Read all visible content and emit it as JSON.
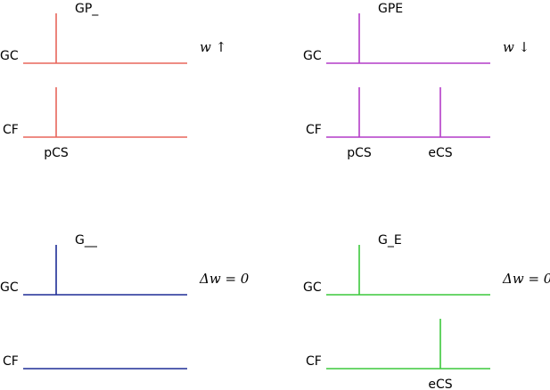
{
  "panels": [
    {
      "id": "gp",
      "title": "GP_",
      "color": "#e8665c",
      "gc_label": "GC",
      "cf_label": "CF",
      "gc_spikes": [
        "pre"
      ],
      "cf_spikes": [
        "pre"
      ],
      "tick_labels": [
        "pCS"
      ],
      "annotation": "w ↑"
    },
    {
      "id": "gpe",
      "title": "GPE",
      "color": "#b43cc8",
      "gc_label": "GC",
      "cf_label": "CF",
      "gc_spikes": [
        "pre"
      ],
      "cf_spikes": [
        "pre",
        "post"
      ],
      "tick_labels": [
        "pCS",
        "eCS"
      ],
      "annotation": "w ↓"
    },
    {
      "id": "g",
      "title": "G__",
      "color": "#1e2d96",
      "gc_label": "GC",
      "cf_label": "CF",
      "gc_spikes": [
        "pre"
      ],
      "cf_spikes": [],
      "tick_labels": [],
      "annotation": "Δw = 0"
    },
    {
      "id": "ge",
      "title": "G_E",
      "color": "#3cc83c",
      "gc_label": "GC",
      "cf_label": "CF",
      "gc_spikes": [
        "pre"
      ],
      "cf_spikes": [
        "post"
      ],
      "tick_labels": [
        "eCS"
      ],
      "annotation": "Δw = 0"
    }
  ]
}
